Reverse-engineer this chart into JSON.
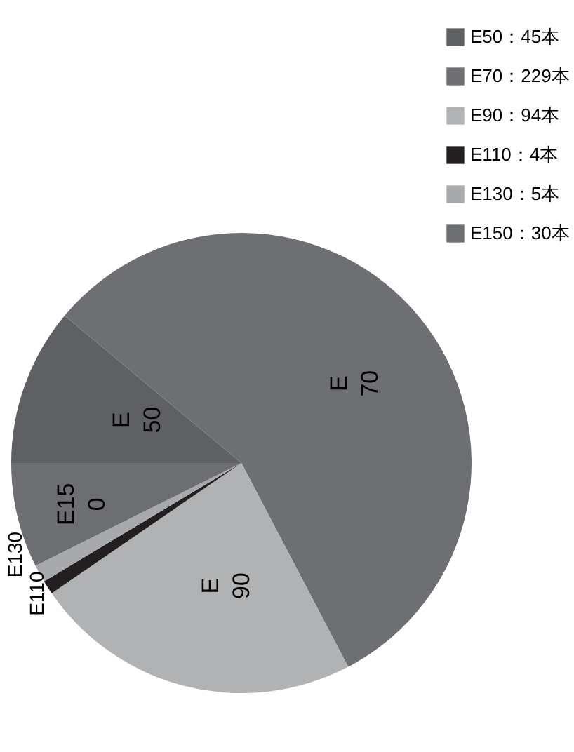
{
  "chart_data": {
    "type": "pie",
    "categories": [
      "E50：45本",
      "E70：229本",
      "E90：94本",
      "E110：4本",
      "E130：5本",
      "E150：30本"
    ],
    "values": [
      45,
      229,
      94,
      4,
      5,
      30
    ],
    "colors": [
      "#5f6063",
      "#6e6f73",
      "#b1b2b4",
      "#231f20",
      "#a7a9ac",
      "#6d6e71"
    ],
    "annotations": [
      "E50",
      "E70",
      "E90",
      "E110",
      "E130",
      "E150"
    ],
    "legend": "right"
  }
}
